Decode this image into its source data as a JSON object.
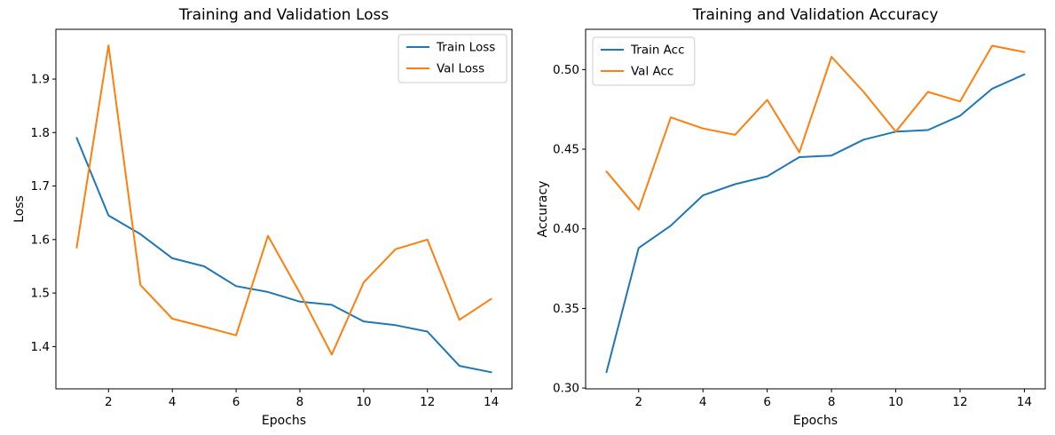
{
  "figure": {
    "background": "#ffffff",
    "panel_names": [
      "loss-chart",
      "accuracy-chart"
    ]
  },
  "colors": {
    "train": "#1f77b4",
    "val": "#ff7f0e",
    "spine": "#000000",
    "legend_border": "#cccccc"
  },
  "chart_data": [
    {
      "type": "line",
      "title": "Training and Validation Loss",
      "xlabel": "Epochs",
      "ylabel": "Loss",
      "x": [
        1,
        2,
        3,
        4,
        5,
        6,
        7,
        8,
        9,
        10,
        11,
        12,
        13,
        14
      ],
      "series": [
        {
          "name": "Train Loss",
          "color": "#1f77b4",
          "values": [
            1.79,
            1.645,
            1.61,
            1.565,
            1.55,
            1.513,
            1.502,
            1.484,
            1.478,
            1.447,
            1.44,
            1.428,
            1.364,
            1.352
          ]
        },
        {
          "name": "Val Loss",
          "color": "#ff7f0e",
          "values": [
            1.585,
            1.963,
            1.515,
            1.452,
            1.437,
            1.421,
            1.607,
            1.5,
            1.385,
            1.52,
            1.582,
            1.6,
            1.45,
            1.489
          ]
        }
      ],
      "xlim": [
        0.35,
        14.65
      ],
      "ylim": [
        1.321,
        1.993
      ],
      "xticks": [
        2,
        4,
        6,
        8,
        10,
        12,
        14
      ],
      "yticks": [
        1.4,
        1.5,
        1.6,
        1.7,
        1.8,
        1.9
      ],
      "ytick_decimals": 1,
      "grid": false,
      "legend": {
        "position": "top-right"
      }
    },
    {
      "type": "line",
      "title": "Training and Validation Accuracy",
      "xlabel": "Epochs",
      "ylabel": "Accuracy",
      "x": [
        1,
        2,
        3,
        4,
        5,
        6,
        7,
        8,
        9,
        10,
        11,
        12,
        13,
        14
      ],
      "series": [
        {
          "name": "Train Acc",
          "color": "#1f77b4",
          "values": [
            0.31,
            0.388,
            0.402,
            0.421,
            0.428,
            0.433,
            0.445,
            0.446,
            0.456,
            0.461,
            0.462,
            0.471,
            0.488,
            0.497
          ]
        },
        {
          "name": "Val Acc",
          "color": "#ff7f0e",
          "values": [
            0.436,
            0.412,
            0.47,
            0.463,
            0.459,
            0.481,
            0.448,
            0.508,
            0.486,
            0.461,
            0.486,
            0.48,
            0.515,
            0.511
          ]
        }
      ],
      "xlim": [
        0.35,
        14.65
      ],
      "ylim": [
        0.2995,
        0.5253
      ],
      "xticks": [
        2,
        4,
        6,
        8,
        10,
        12,
        14
      ],
      "yticks": [
        0.3,
        0.35,
        0.4,
        0.45,
        0.5
      ],
      "ytick_decimals": 2,
      "grid": false,
      "legend": {
        "position": "top-left"
      }
    }
  ]
}
